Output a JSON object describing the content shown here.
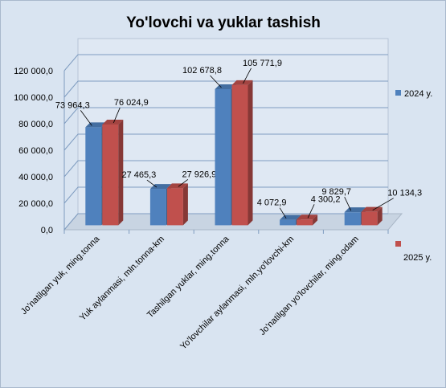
{
  "chart_data": {
    "type": "bar",
    "title": "Yo'lovchi va yuklar tashish",
    "categories": [
      "Jo'natilgan yuk, ming.tonna",
      "Yuk aylanmasi, mln.tonna-km",
      "Tashilgan yuklar, ming.tonna",
      "Yo'lovchilar aylanmasi, mln.yo'lovchi-km",
      "Jo'natilgan yo'lovchilar, ming.odam"
    ],
    "series": [
      {
        "name": "2024 y.",
        "values": [
          73964.3,
          27465.3,
          102678.8,
          4072.9,
          9829.7
        ],
        "labels": [
          "73 964,3",
          "27 465,3",
          "102 678,8",
          "4 072,9",
          "9 829,7"
        ],
        "color": "#4f81bd"
      },
      {
        "name": "2025 y.",
        "values": [
          76024.9,
          27926.9,
          105771.9,
          4300.2,
          10134.3
        ],
        "labels": [
          "76 024,9",
          "27 926,9",
          "105 771,9",
          "4 300,2",
          "10 134,3"
        ],
        "color": "#c0504d"
      }
    ],
    "ylim": [
      0,
      120000
    ],
    "yticks": [
      "0,0",
      "20 000,0",
      "40 000,0",
      "60 000,0",
      "80 000,0",
      "100 000,0",
      "120 000,0"
    ],
    "grid": true,
    "legend": "right",
    "background": "#d9e4f1"
  }
}
